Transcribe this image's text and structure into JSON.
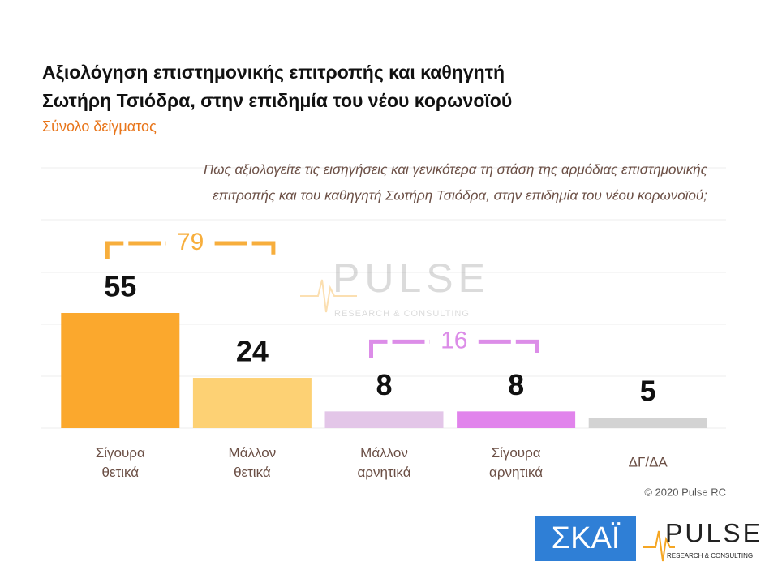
{
  "chart_data": {
    "type": "bar",
    "title": [
      "Αξιολόγηση επιστημονικής επιτροπής και καθηγητή",
      "Σωτήρη Τσιόδρα, στην επιδημία του νέου κορωνοϊού"
    ],
    "subtitle": "Σύνολο δείγματος",
    "question": [
      "Πως αξιολογείτε τις εισηγήσεις και γενικότερα τη στάση της αρμόδιας επιστημονικής",
      "επιτροπής και του καθηγητή Σωτήρη Τσιόδρα, στην επιδημία του νέου κορωνοϊού;"
    ],
    "categories": [
      "Σίγουρα θετικά",
      "Μάλλον θετικά",
      "Μάλλον αρνητικά",
      "Σίγουρα αρνητικά",
      "ΔΓ/ΔΑ"
    ],
    "values": [
      55,
      24,
      8,
      8,
      5
    ],
    "colors": [
      "#fba82d",
      "#fdd174",
      "#e3c6e8",
      "#e184ec",
      "#d3d3d3"
    ],
    "ylim": [
      0,
      55
    ],
    "groups": [
      {
        "value": 79,
        "categories": [
          "Σίγουρα θετικά",
          "Μάλλον θετικά"
        ],
        "color": "#f7ae3c"
      },
      {
        "value": 16,
        "categories": [
          "Μάλλον αρνητικά",
          "Σίγουρα αρνητικά"
        ],
        "color": "#dc8de8"
      }
    ],
    "source": "© 2020 Pulse RC",
    "watermark": "PULSE",
    "watermark_sub": "RESEARCH & CONSULTING",
    "logos": {
      "skai": "ΣΚΑΪ",
      "pulse": "PULSE",
      "pulse_sub": "RESEARCH & CONSULTING"
    }
  }
}
